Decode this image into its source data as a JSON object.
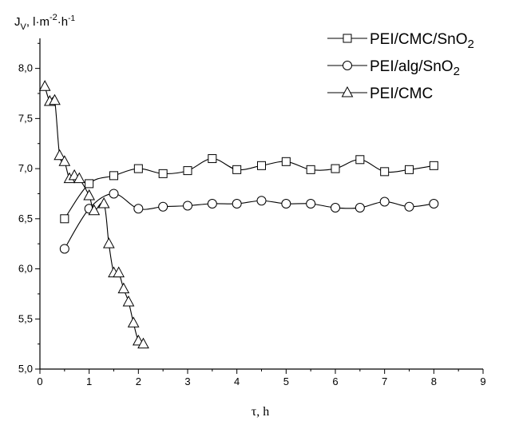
{
  "chart_data": {
    "type": "line",
    "ylabel": {
      "symbol": "J",
      "sub": "V",
      "unit_prefix": ", l·m",
      "exp1": "-2",
      "unit_mid": "·h",
      "exp2": "-1"
    },
    "xlabel": "τ, h",
    "xlim": [
      0,
      9
    ],
    "ylim": [
      5.0,
      8.3
    ],
    "x_ticks": [
      "0",
      "1",
      "2",
      "3",
      "4",
      "5",
      "6",
      "7",
      "8",
      "9"
    ],
    "y_ticks": [
      "5,0",
      "5,5",
      "6,0",
      "6,5",
      "7,0",
      "7,5",
      "8,0"
    ],
    "legend_position": "top-right",
    "series": [
      {
        "name": "PEI/CMC/SnO",
        "name_sub": "2",
        "marker": "square",
        "x": [
          0.5,
          1.0,
          1.5,
          2.0,
          2.5,
          3.0,
          3.5,
          4.0,
          4.5,
          5.0,
          5.5,
          6.0,
          6.5,
          7.0,
          7.5,
          8.0
        ],
        "y": [
          6.5,
          6.85,
          6.93,
          7.0,
          6.95,
          6.98,
          7.1,
          6.99,
          7.03,
          7.07,
          6.99,
          7.0,
          7.09,
          6.97,
          6.99,
          7.03
        ]
      },
      {
        "name": "PEI/alg/SnO",
        "name_sub": "2",
        "marker": "circle",
        "x": [
          0.5,
          1.0,
          1.5,
          2.0,
          2.5,
          3.0,
          3.5,
          4.0,
          4.5,
          5.0,
          5.5,
          6.0,
          6.5,
          7.0,
          7.5,
          8.0
        ],
        "y": [
          6.2,
          6.6,
          6.75,
          6.6,
          6.62,
          6.63,
          6.65,
          6.65,
          6.68,
          6.65,
          6.65,
          6.61,
          6.61,
          6.67,
          6.62,
          6.65
        ]
      },
      {
        "name": "PEI/CMC",
        "name_sub": "",
        "marker": "triangle",
        "x": [
          0.1,
          0.2,
          0.3,
          0.4,
          0.5,
          0.6,
          0.7,
          0.8,
          1.0,
          1.1,
          1.3,
          1.4,
          1.5,
          1.6,
          1.7,
          1.8,
          1.9,
          2.0,
          2.1
        ],
        "y": [
          7.82,
          7.67,
          7.68,
          7.13,
          7.07,
          6.9,
          6.93,
          6.9,
          6.73,
          6.58,
          6.65,
          6.25,
          5.96,
          5.96,
          5.8,
          5.67,
          5.46,
          5.28,
          5.25
        ]
      }
    ]
  }
}
